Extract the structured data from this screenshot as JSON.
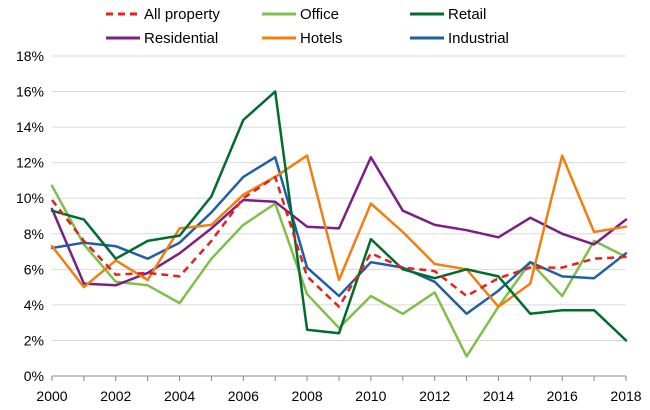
{
  "chart_data": {
    "type": "line",
    "x": [
      2000,
      2001,
      2002,
      2003,
      2004,
      2005,
      2006,
      2007,
      2008,
      2009,
      2010,
      2011,
      2012,
      2013,
      2014,
      2015,
      2016,
      2017,
      2018
    ],
    "x_ticks": [
      "2000",
      "2002",
      "2004",
      "2006",
      "2008",
      "2010",
      "2012",
      "2014",
      "2016",
      "2018"
    ],
    "y_ticks": [
      "0%",
      "2%",
      "4%",
      "6%",
      "8%",
      "10%",
      "12%",
      "14%",
      "16%",
      "18%"
    ],
    "ylim": [
      0,
      18
    ],
    "y_unit": "%",
    "grid": "horizontal",
    "legend_position": "top",
    "series": [
      {
        "name": "All property",
        "color": "#e3221c",
        "dashed": true,
        "values": [
          9.9,
          7.6,
          5.7,
          5.8,
          5.6,
          7.6,
          10.0,
          11.2,
          5.6,
          3.9,
          6.9,
          6.1,
          5.9,
          4.5,
          5.5,
          6.1,
          6.1,
          6.6,
          6.7
        ]
      },
      {
        "name": "Office",
        "color": "#7fbf4a",
        "dashed": false,
        "values": [
          10.7,
          7.4,
          5.3,
          5.1,
          4.1,
          6.6,
          8.5,
          9.7,
          4.6,
          2.7,
          4.5,
          3.5,
          4.7,
          1.1,
          3.9,
          6.4,
          4.5,
          7.6,
          6.7
        ]
      },
      {
        "name": "Retail",
        "color": "#006d2c",
        "dashed": false,
        "values": [
          9.3,
          8.8,
          6.6,
          7.6,
          7.9,
          10.1,
          14.4,
          16.0,
          2.6,
          2.4,
          7.7,
          6.0,
          5.5,
          6.0,
          5.6,
          3.5,
          3.7,
          3.7,
          2.0
        ]
      },
      {
        "name": "Residential",
        "color": "#7b1e86",
        "dashed": false,
        "values": [
          9.4,
          5.2,
          5.1,
          5.8,
          6.9,
          8.3,
          9.9,
          9.8,
          8.4,
          8.3,
          12.3,
          9.3,
          8.5,
          8.2,
          7.8,
          8.9,
          8.0,
          7.4,
          8.8
        ]
      },
      {
        "name": "Hotels",
        "color": "#f07f10",
        "dashed": false,
        "values": [
          7.3,
          5.0,
          6.5,
          5.4,
          8.3,
          8.5,
          10.2,
          11.2,
          12.4,
          5.4,
          9.7,
          8.1,
          6.3,
          6.0,
          3.9,
          5.2,
          12.4,
          8.1,
          8.4
        ]
      },
      {
        "name": "Industrial",
        "color": "#1f5fa6",
        "dashed": false,
        "values": [
          7.2,
          7.5,
          7.3,
          6.6,
          7.5,
          9.2,
          11.2,
          12.3,
          6.1,
          4.5,
          6.4,
          6.1,
          5.3,
          3.5,
          4.8,
          6.4,
          5.6,
          5.5,
          6.9
        ]
      }
    ]
  }
}
